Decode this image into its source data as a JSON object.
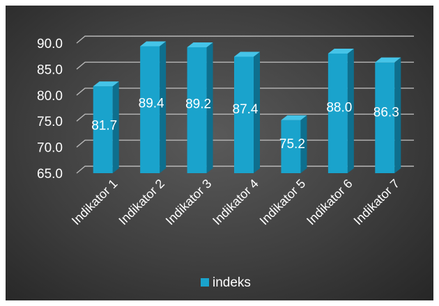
{
  "chart_data": {
    "type": "bar",
    "categories": [
      "Indikator 1",
      "Indikator 2",
      "Indikator 3",
      "Indikator 4",
      "Indikator 5",
      "Indikator 6",
      "Indikator 7"
    ],
    "series": [
      {
        "name": "indeks",
        "values": [
          81.7,
          89.4,
          89.2,
          87.4,
          75.2,
          88.0,
          86.3
        ]
      }
    ],
    "value_labels": [
      "81.7",
      "89.4",
      "89.2",
      "87.4",
      "75.2",
      "88.0",
      "86.3"
    ],
    "y_ticks": [
      "65.0",
      "70.0",
      "75.0",
      "80.0",
      "85.0",
      "90.0"
    ],
    "ylim": [
      65,
      90
    ],
    "grid": true,
    "legend_position": "bottom",
    "style": "3d-bar",
    "colors": {
      "bar_front": "#1aa3cc",
      "bar_top": "#45c4e8",
      "bar_side": "#0e6f8e",
      "gridline": "#b8b8b8",
      "text": "#ffffff"
    }
  }
}
